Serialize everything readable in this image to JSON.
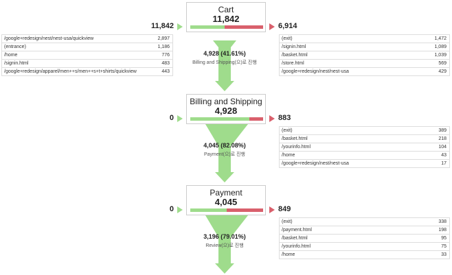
{
  "steps": [
    {
      "name": "Cart",
      "total": "11,842",
      "entrances": "11,842",
      "exits": "6,914",
      "entrance_sources": [
        {
          "page": "/google+redesign/nest/nest-usa/quickview",
          "count": "2,897"
        },
        {
          "page": "(entrance)",
          "count": "1,186"
        },
        {
          "page": "/home",
          "count": "776"
        },
        {
          "page": "/signin.html",
          "count": "483"
        },
        {
          "page": "/google+redesign/apparel/men++s/men++s+t+shirts/quickview",
          "count": "443"
        }
      ],
      "exit_pages": [
        {
          "page": "(exit)",
          "count": "1,472"
        },
        {
          "page": "/signin.html",
          "count": "1,089"
        },
        {
          "page": "/basket.html",
          "count": "1,039"
        },
        {
          "page": "/store.html",
          "count": "569"
        },
        {
          "page": "/google+redesign/nest/nest-usa",
          "count": "429"
        }
      ],
      "proceed": "4,928 (41.61%)",
      "proceed_label": "Billing and Shipping(으)로 진행"
    },
    {
      "name": "Billing and Shipping",
      "total": "4,928",
      "entrances": "0",
      "exits": "883",
      "entrance_sources": [],
      "exit_pages": [
        {
          "page": "(exit)",
          "count": "389"
        },
        {
          "page": "/basket.html",
          "count": "218"
        },
        {
          "page": "/yourinfo.html",
          "count": "104"
        },
        {
          "page": "/home",
          "count": "43"
        },
        {
          "page": "/google+redesign/nest/nest-usa",
          "count": "17"
        }
      ],
      "proceed": "4,045 (82.08%)",
      "proceed_label": "Payment(으)로 진행"
    },
    {
      "name": "Payment",
      "total": "4,045",
      "entrances": "0",
      "exits": "849",
      "entrance_sources": [],
      "exit_pages": [
        {
          "page": "(exit)",
          "count": "338"
        },
        {
          "page": "/payment.html",
          "count": "198"
        },
        {
          "page": "/basket.html",
          "count": "95"
        },
        {
          "page": "/yourinfo.html",
          "count": "75"
        },
        {
          "page": "/home",
          "count": "33"
        }
      ],
      "proceed": "3,196 (79.01%)",
      "proceed_label": "Review(으)로 진행"
    }
  ]
}
